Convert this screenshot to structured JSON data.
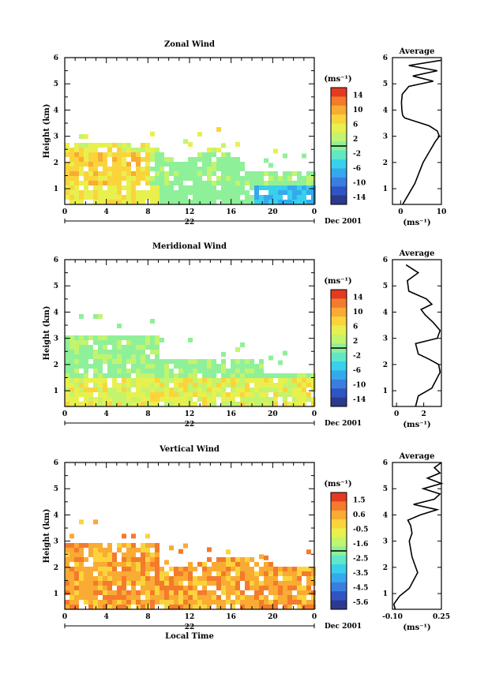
{
  "chart_data": [
    {
      "type": "heatmap",
      "title": "Zonal Wind",
      "ylabel": "Height (km)",
      "y_ticks": [
        1,
        2,
        3,
        4,
        5,
        6
      ],
      "ylim": [
        0.4,
        6
      ],
      "x_ticks": [
        "0",
        "4",
        "8",
        "12",
        "16",
        "20",
        "0"
      ],
      "xlim": [
        0,
        24
      ],
      "date_day": "22",
      "date_label": "Dec 2001",
      "colorbar_unit": "(ms⁻¹)",
      "colorbar_ticks": [
        "14",
        "10",
        "6",
        "2",
        "-2",
        "-6",
        "-10",
        "-14"
      ],
      "colorbar_range": [
        -16,
        16
      ],
      "profile": {
        "title": "Average",
        "xlabel": "(ms⁻¹)",
        "x_ticks": [
          "0",
          "10"
        ],
        "xlim": [
          -2,
          10
        ],
        "height": [
          0.4,
          0.8,
          1.2,
          1.6,
          2.0,
          2.4,
          2.8,
          3.0,
          3.2,
          3.4,
          3.6,
          3.7,
          3.8,
          4.0,
          4.3,
          4.6,
          4.9,
          5.1,
          5.3,
          5.5,
          5.7,
          5.9
        ],
        "value": [
          0.5,
          2.0,
          3.5,
          4.5,
          5.5,
          7.0,
          8.5,
          9.5,
          9.0,
          7.0,
          3.0,
          1.0,
          0.5,
          0.3,
          0.2,
          0.4,
          2.0,
          8.0,
          3.0,
          9.0,
          2.0,
          10.0
        ]
      }
    },
    {
      "type": "heatmap",
      "title": "Meridional Wind",
      "ylabel": "Height (km)",
      "y_ticks": [
        1,
        2,
        3,
        4,
        5,
        6
      ],
      "ylim": [
        0.4,
        6
      ],
      "x_ticks": [
        "0",
        "4",
        "8",
        "12",
        "16",
        "20",
        "0"
      ],
      "xlim": [
        0,
        24
      ],
      "date_day": "22",
      "date_label": "Dec 2001",
      "colorbar_unit": "(ms⁻¹)",
      "colorbar_ticks": [
        "14",
        "10",
        "6",
        "2",
        "-2",
        "-6",
        "-10",
        "-14"
      ],
      "colorbar_range": [
        -16,
        16
      ],
      "profile": {
        "title": "Average",
        "xlabel": "(ms⁻¹)",
        "x_ticks": [
          "0",
          "2"
        ],
        "xlim": [
          -0.3,
          3.3
        ],
        "height": [
          0.4,
          0.8,
          1.1,
          1.4,
          1.7,
          2.0,
          2.2,
          2.4,
          2.6,
          2.8,
          3.0,
          3.3,
          3.6,
          3.9,
          4.1,
          4.3,
          4.5,
          4.8,
          5.2,
          5.5,
          5.8
        ],
        "value": [
          1.4,
          1.6,
          2.6,
          2.9,
          3.2,
          3.1,
          2.4,
          1.6,
          1.5,
          1.4,
          3.0,
          3.2,
          2.7,
          2.1,
          1.8,
          2.6,
          2.2,
          0.9,
          0.8,
          1.6,
          0.7
        ]
      }
    },
    {
      "type": "heatmap",
      "title": "Vertical Wind",
      "ylabel": "Height (km)",
      "y_ticks": [
        1,
        2,
        3,
        4,
        5,
        6
      ],
      "ylim": [
        0.4,
        6
      ],
      "x_ticks": [
        "0",
        "4",
        "8",
        "12",
        "16",
        "20",
        "0"
      ],
      "xlim": [
        0,
        24
      ],
      "xlabel": "Local Time",
      "date_day": "22",
      "date_label": "Dec 2001",
      "colorbar_unit": "(ms⁻¹)",
      "colorbar_ticks": [
        "1.5",
        "0.6",
        "-0.5",
        "-1.6",
        "-2.5",
        "-3.5",
        "-4.5",
        "-5.6"
      ],
      "colorbar_range": [
        -6,
        2
      ],
      "profile": {
        "title": "Average",
        "xlabel": "(ms⁻¹)",
        "x_ticks": [
          "-0.10",
          "0.25"
        ],
        "xlim": [
          -0.1,
          0.25
        ],
        "height": [
          0.4,
          0.6,
          0.9,
          1.2,
          1.5,
          1.8,
          2.1,
          2.4,
          2.7,
          3.0,
          3.3,
          3.6,
          3.8,
          4.0,
          4.2,
          4.4,
          4.6,
          4.8,
          5.0,
          5.2,
          5.4,
          5.6,
          5.8,
          6.0
        ],
        "value": [
          -0.08,
          -0.09,
          -0.05,
          0.02,
          0.05,
          0.08,
          0.06,
          0.04,
          0.03,
          0.02,
          0.04,
          0.03,
          0.01,
          0.1,
          0.22,
          0.05,
          0.2,
          0.24,
          0.12,
          0.25,
          0.15,
          0.24,
          0.2,
          0.25
        ]
      }
    }
  ]
}
